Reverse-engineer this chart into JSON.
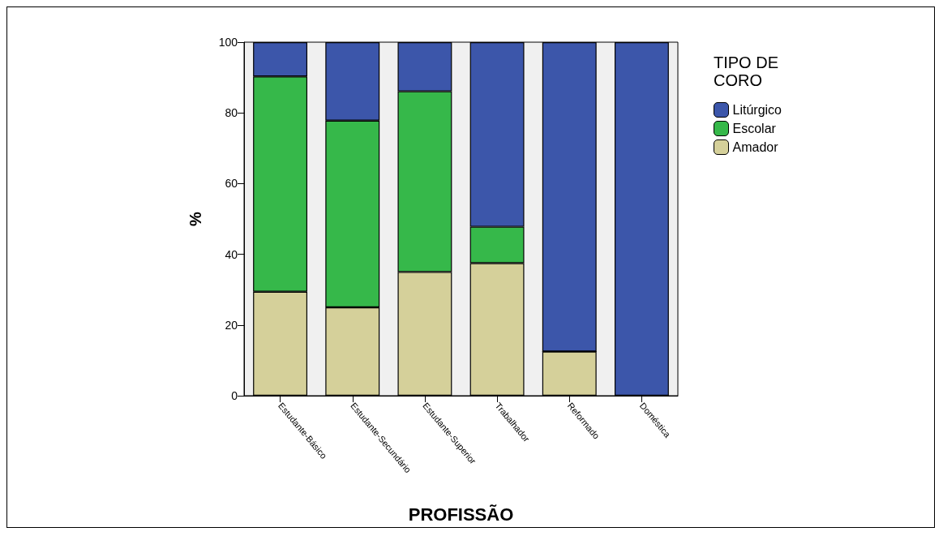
{
  "chart_data": {
    "type": "bar",
    "stacked": true,
    "xlabel": "PROFISSÃO",
    "ylabel": "%",
    "legend_title": "TIPO DE CORO",
    "legend": "right",
    "grid": false,
    "categories": [
      "Estudante-Básico",
      "Estudante-Secundário",
      "Estudante-Superior",
      "Trabalhador",
      "Reformado",
      "Doméstica"
    ],
    "ylim": [
      0,
      100
    ],
    "yticks": [
      0,
      20,
      40,
      60,
      80,
      100
    ],
    "series": [
      {
        "name": "Amador",
        "color": "#d5d09a",
        "values": [
          29.4,
          25,
          35,
          37.5,
          12.5,
          0
        ]
      },
      {
        "name": "Escolar",
        "color": "#36b84a",
        "values": [
          60.9,
          52.8,
          51.1,
          10.3,
          0,
          0
        ]
      },
      {
        "name": "Litúrgico",
        "color": "#3c56aa",
        "values": [
          9.7,
          22.2,
          13.9,
          52.2,
          87.5,
          100
        ]
      }
    ]
  }
}
